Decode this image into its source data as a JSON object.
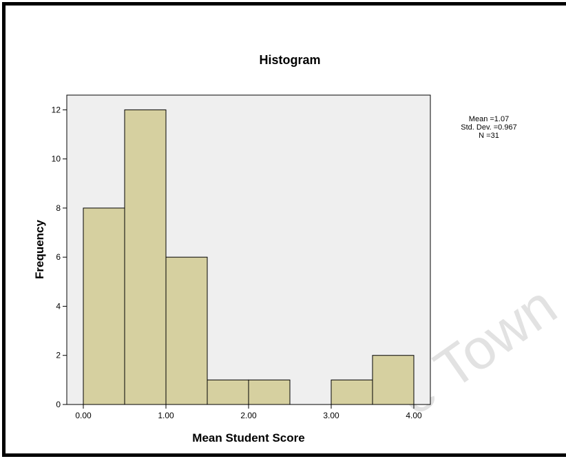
{
  "watermark": "e Town",
  "chart_data": {
    "type": "bar",
    "title": "Histogram",
    "xlabel": "Mean Student Score",
    "ylabel": "Frequency",
    "bin_width": 0.5,
    "bin_starts": [
      0.0,
      0.5,
      1.0,
      1.5,
      2.0,
      2.5,
      3.0,
      3.5
    ],
    "values": [
      8,
      12,
      6,
      1,
      1,
      0,
      1,
      2
    ],
    "xlim": [
      -0.2,
      4.2
    ],
    "ylim": [
      0,
      12.6
    ],
    "x_ticks": [
      0,
      1,
      2,
      3,
      4
    ],
    "x_tick_labels": [
      "0.00",
      "1.00",
      "2.00",
      "3.00",
      "4.00"
    ],
    "y_ticks": [
      0,
      2,
      4,
      6,
      8,
      10,
      12
    ],
    "y_tick_labels": [
      "0",
      "2",
      "4",
      "6",
      "8",
      "10",
      "12"
    ],
    "grid": false,
    "stats": [
      "Mean =1.07",
      "Std. Dev. =0.967",
      "N =31"
    ],
    "colors": {
      "bar_fill": "#d6d0a0",
      "bar_stroke": "#000000",
      "plot_background": "#efefef"
    }
  }
}
